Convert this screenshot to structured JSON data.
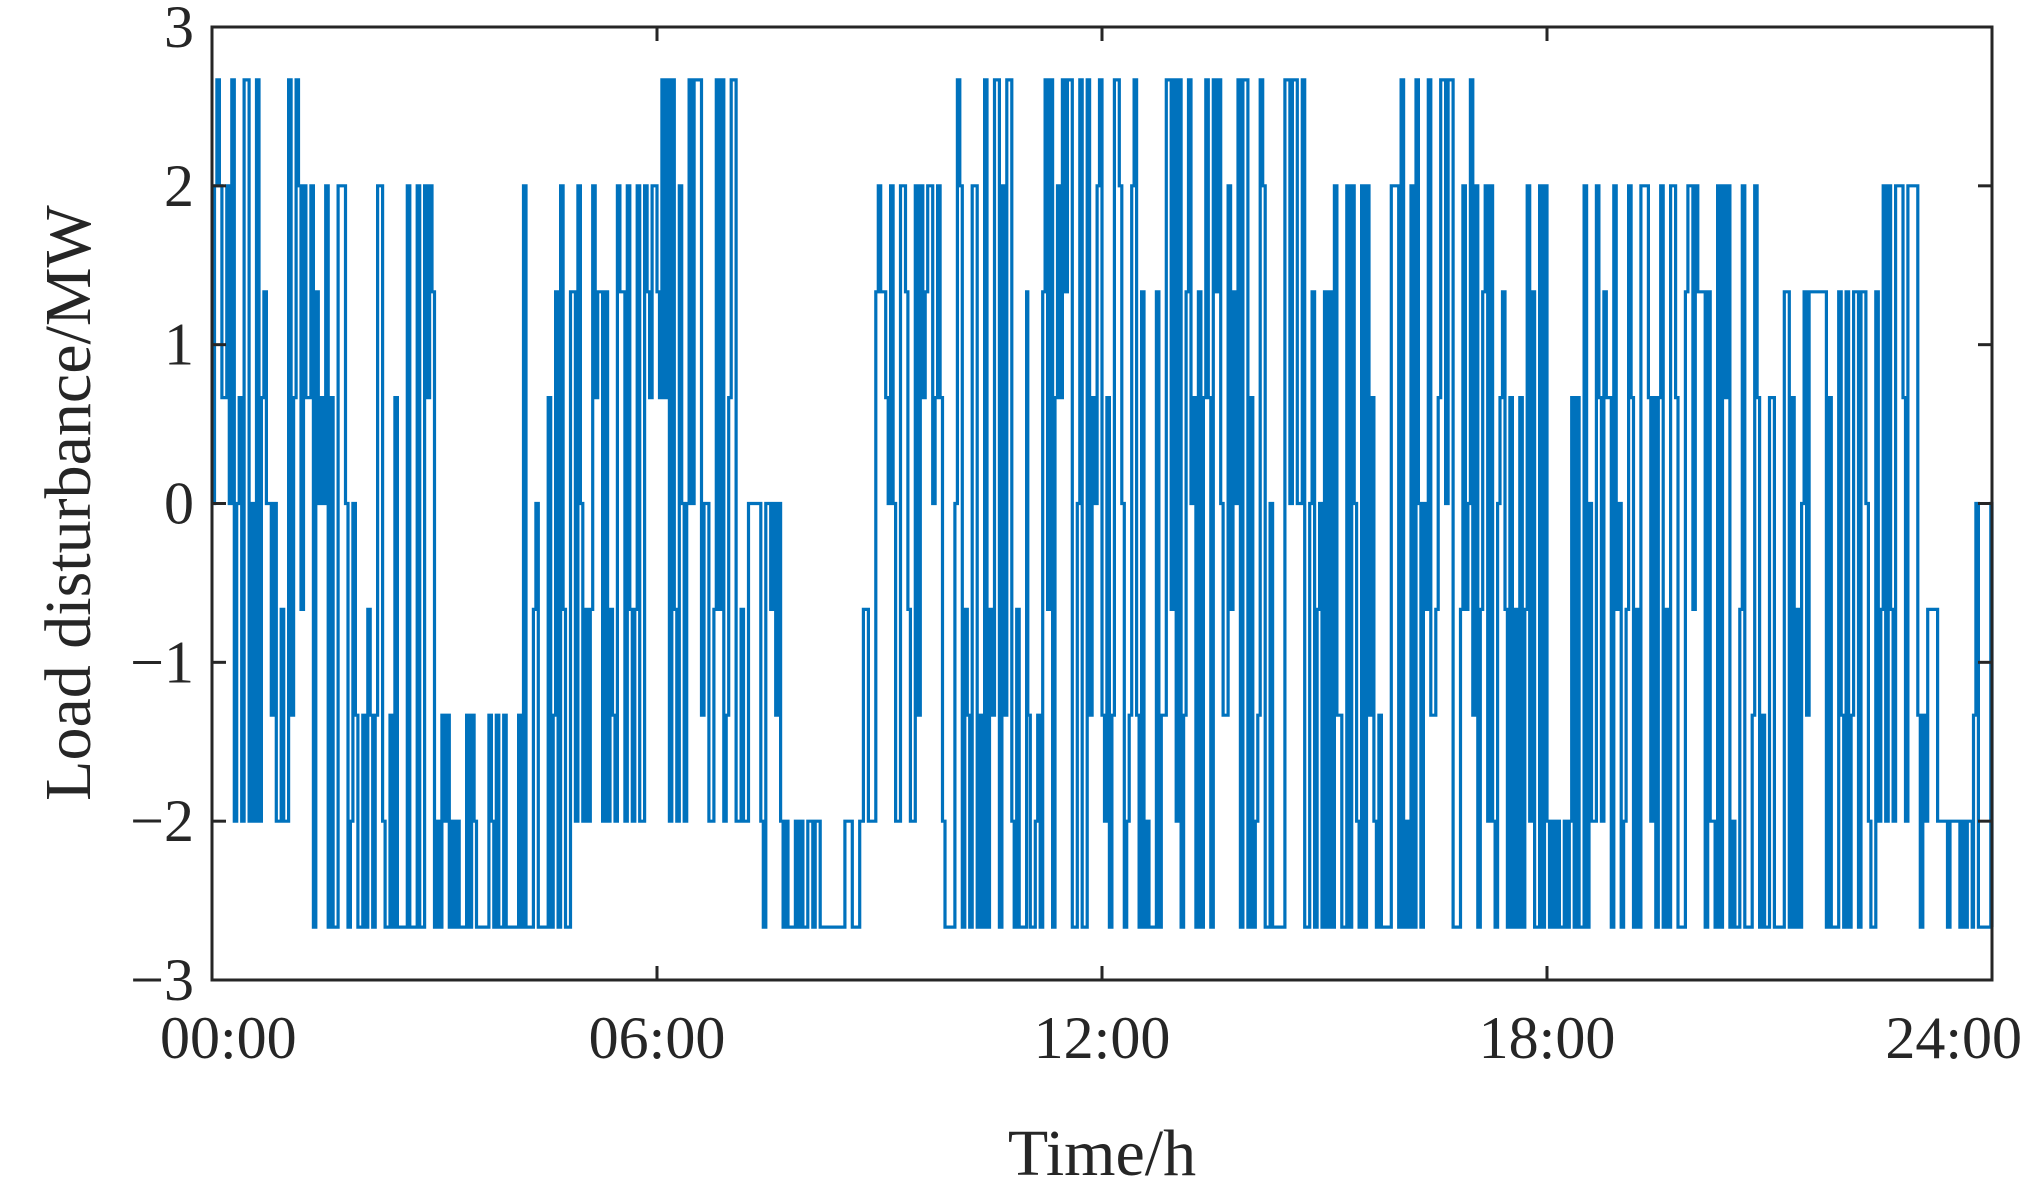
{
  "chart_data": {
    "type": "line",
    "title": "",
    "xlabel": "Time/h",
    "ylabel": "Load disturbance/MW",
    "xlim": [
      "00:00",
      "24:00"
    ],
    "ylim": [
      -3,
      3
    ],
    "x_ticks": [
      "00:00",
      "06:00",
      "12:00",
      "18:00",
      "24:00"
    ],
    "y_ticks": [
      "3",
      "2",
      "1",
      "0",
      "−1",
      "−2",
      "−3"
    ],
    "grid": false,
    "legend": "none",
    "levels_mw": [
      -2.667,
      -2,
      -1.333,
      -0.667,
      0,
      0.667,
      1.333,
      2,
      2.667
    ],
    "series": [
      {
        "color": "#0072BD",
        "x_start": "00:00",
        "x_end": "24:00",
        "step_minutes": 2,
        "segments": [
          {
            "from": "00:00",
            "to": "00:34",
            "range_mw": [
              -2,
              2.667
            ]
          },
          {
            "from": "00:34",
            "to": "01:10",
            "range_mw": [
              -2,
              2.667
            ]
          },
          {
            "from": "01:10",
            "to": "02:00",
            "range_mw": [
              -2.667,
              2
            ]
          },
          {
            "from": "02:00",
            "to": "03:00",
            "range_mw": [
              -2.667,
              2
            ]
          },
          {
            "from": "03:00",
            "to": "04:10",
            "range_mw": [
              -2.667,
              -1.333
            ]
          },
          {
            "from": "04:10",
            "to": "05:00",
            "range_mw": [
              -2.667,
              2
            ]
          },
          {
            "from": "05:00",
            "to": "06:00",
            "range_mw": [
              -2,
              2
            ]
          },
          {
            "from": "06:00",
            "to": "07:10",
            "range_mw": [
              -2,
              2.667
            ]
          },
          {
            "from": "07:10",
            "to": "07:40",
            "range_mw": [
              -2.667,
              0
            ]
          },
          {
            "from": "07:40",
            "to": "08:45",
            "range_mw": [
              -2.667,
              -2
            ]
          },
          {
            "from": "08:45",
            "to": "09:45",
            "range_mw": [
              -2,
              2
            ]
          },
          {
            "from": "09:45",
            "to": "11:00",
            "range_mw": [
              -2.667,
              2.667
            ]
          },
          {
            "from": "11:00",
            "to": "12:00",
            "range_mw": [
              -2.667,
              2.667
            ]
          },
          {
            "from": "12:00",
            "to": "13:00",
            "range_mw": [
              -2.667,
              2.667
            ]
          },
          {
            "from": "13:00",
            "to": "14:00",
            "range_mw": [
              -2.667,
              2.667
            ]
          },
          {
            "from": "14:00",
            "to": "15:00",
            "range_mw": [
              -2.667,
              2.667
            ]
          },
          {
            "from": "15:00",
            "to": "16:00",
            "range_mw": [
              -2.667,
              2
            ]
          },
          {
            "from": "16:00",
            "to": "17:00",
            "range_mw": [
              -2.667,
              2.667
            ]
          },
          {
            "from": "17:00",
            "to": "18:00",
            "range_mw": [
              -2.667,
              2
            ]
          },
          {
            "from": "18:00",
            "to": "18:20",
            "range_mw": [
              -2.667,
              -2
            ]
          },
          {
            "from": "18:20",
            "to": "19:00",
            "range_mw": [
              -2.667,
              2
            ]
          },
          {
            "from": "19:00",
            "to": "20:00",
            "range_mw": [
              -2.667,
              2
            ]
          },
          {
            "from": "20:00",
            "to": "21:00",
            "range_mw": [
              -2.667,
              2
            ]
          },
          {
            "from": "21:00",
            "to": "21:40",
            "range_mw": [
              -2.667,
              1.333
            ]
          },
          {
            "from": "21:40",
            "to": "22:30",
            "range_mw": [
              -2.667,
              1.333
            ]
          },
          {
            "from": "22:30",
            "to": "23:00",
            "range_mw": [
              -2.667,
              2
            ]
          },
          {
            "from": "23:00",
            "to": "23:20",
            "range_mw": [
              -2.667,
              -0.667
            ]
          },
          {
            "from": "23:20",
            "to": "23:45",
            "range_mw": [
              -2.667,
              -2
            ]
          },
          {
            "from": "23:45",
            "to": "24:00",
            "range_mw": [
              -2.667,
              0
            ]
          }
        ]
      }
    ]
  }
}
